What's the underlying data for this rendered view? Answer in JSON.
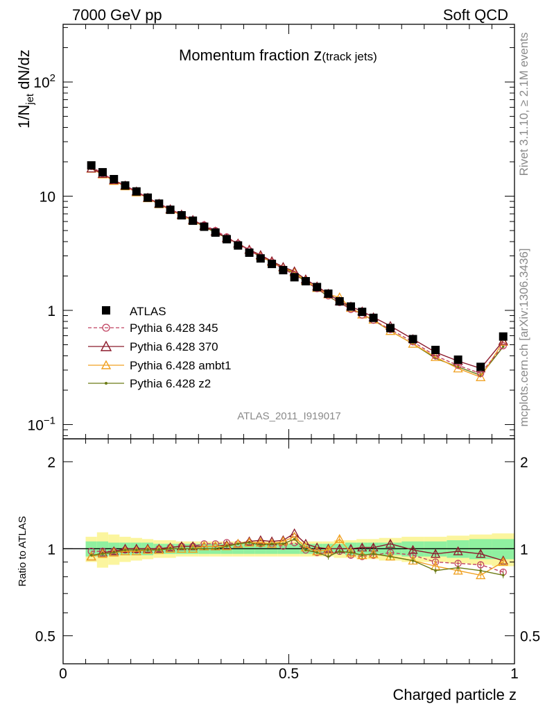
{
  "header": {
    "left": "7000 GeV pp",
    "right": "Soft QCD"
  },
  "side_labels": {
    "rivet": "Rivet 3.1.10, ≥ 2.1M events",
    "mcplots": "mcplots.cern.ch [arXiv:1306.3436]"
  },
  "chart_data": [
    {
      "type": "line",
      "title_main": "Momentum fraction ",
      "title_var": "z",
      "title_sub": "(track jets)",
      "ylabel": "1/N",
      "ylabel_sub": "jet",
      "ylabel_tail": " dN/dz",
      "watermark": "ATLAS_2011_I919017",
      "xlim": [
        0,
        1
      ],
      "ylim": [
        0.075,
        320
      ],
      "yscale": "log",
      "yticks": [
        {
          "value": 0.1,
          "base": "10",
          "exp": "−1"
        },
        {
          "value": 1,
          "base": "1",
          "exp": ""
        },
        {
          "value": 10,
          "base": "10",
          "exp": ""
        },
        {
          "value": 100,
          "base": "10",
          "exp": "2"
        }
      ],
      "legend_position": "bottom-left",
      "x": [
        0.0625,
        0.0875,
        0.1125,
        0.1375,
        0.1625,
        0.1875,
        0.2125,
        0.2375,
        0.2625,
        0.2875,
        0.3125,
        0.3375,
        0.3625,
        0.3875,
        0.4125,
        0.4375,
        0.4625,
        0.4875,
        0.5125,
        0.5375,
        0.5625,
        0.5875,
        0.6125,
        0.6375,
        0.6625,
        0.6875,
        0.725,
        0.775,
        0.825,
        0.875,
        0.925,
        0.975
      ],
      "series": [
        {
          "name": "ATLAS",
          "color": "#000000",
          "marker": "square",
          "values": [
            18.6,
            16.2,
            14.1,
            12.4,
            11.0,
            9.7,
            8.6,
            7.6,
            6.8,
            6.1,
            5.4,
            4.8,
            4.2,
            3.7,
            3.2,
            2.85,
            2.55,
            2.25,
            1.95,
            1.8,
            1.6,
            1.4,
            1.2,
            1.08,
            0.97,
            0.86,
            0.7,
            0.56,
            0.45,
            0.37,
            0.32,
            0.59
          ]
        },
        {
          "name": "Pythia 6.428 345",
          "color": "#c0405f",
          "marker": "circle-open",
          "dash": "5,3",
          "values": [
            18.2,
            15.8,
            13.8,
            12.3,
            10.9,
            9.6,
            8.6,
            7.7,
            6.9,
            6.2,
            5.6,
            5.0,
            4.4,
            3.85,
            3.35,
            2.95,
            2.65,
            2.3,
            2.05,
            1.78,
            1.55,
            1.34,
            1.17,
            1.02,
            0.91,
            0.82,
            0.68,
            0.53,
            0.4,
            0.33,
            0.28,
            0.49
          ]
        },
        {
          "name": "Pythia 6.428 370",
          "color": "#8b1a2b",
          "marker": "triangle-open",
          "values": [
            17.5,
            15.7,
            13.8,
            12.4,
            11.0,
            9.7,
            8.6,
            7.7,
            6.9,
            6.2,
            5.5,
            4.9,
            4.3,
            3.85,
            3.4,
            3.05,
            2.7,
            2.4,
            2.2,
            1.87,
            1.62,
            1.4,
            1.2,
            1.08,
            0.98,
            0.87,
            0.73,
            0.56,
            0.43,
            0.36,
            0.31,
            0.54
          ]
        },
        {
          "name": "Pythia 6.428 ambt1",
          "color": "#f0a020",
          "marker": "triangle-open",
          "values": [
            17.4,
            15.5,
            13.6,
            12.2,
            10.8,
            9.6,
            8.5,
            7.6,
            6.8,
            6.1,
            5.5,
            4.9,
            4.3,
            3.85,
            3.4,
            3.0,
            2.65,
            2.38,
            2.15,
            1.82,
            1.57,
            1.38,
            1.3,
            1.05,
            0.92,
            0.83,
            0.66,
            0.51,
            0.39,
            0.31,
            0.26,
            0.53
          ]
        },
        {
          "name": "Pythia 6.428 z2",
          "color": "#6b7a14",
          "marker": "dot",
          "values": [
            17.7,
            15.6,
            13.7,
            12.3,
            10.9,
            9.6,
            8.5,
            7.6,
            6.8,
            6.1,
            5.4,
            4.8,
            4.3,
            3.85,
            3.35,
            2.95,
            2.65,
            2.35,
            2.1,
            1.78,
            1.55,
            1.32,
            1.17,
            1.05,
            0.92,
            0.82,
            0.66,
            0.51,
            0.38,
            0.32,
            0.27,
            0.48
          ]
        }
      ]
    },
    {
      "type": "line",
      "ylabel": "Ratio to ATLAS",
      "xlabel": "Charged particle z",
      "xlim": [
        0,
        1
      ],
      "ylim": [
        0.4,
        2.4
      ],
      "yscale": "log",
      "xticks": [
        {
          "value": 0,
          "label": "0"
        },
        {
          "value": 0.5,
          "label": "0.5"
        },
        {
          "value": 1,
          "label": "1"
        }
      ],
      "yticks": [
        {
          "value": 0.5,
          "label": "0.5"
        },
        {
          "value": 1,
          "label": "1"
        },
        {
          "value": 2,
          "label": "2"
        }
      ],
      "band_inner": [
        0.06,
        0.06,
        0.05,
        0.05,
        0.05,
        0.05,
        0.04,
        0.04,
        0.04,
        0.04,
        0.04,
        0.04,
        0.04,
        0.04,
        0.04,
        0.04,
        0.04,
        0.04,
        0.04,
        0.04,
        0.04,
        0.04,
        0.04,
        0.05,
        0.05,
        0.05,
        0.05,
        0.06,
        0.06,
        0.07,
        0.08,
        0.08
      ],
      "band_outer": [
        0.1,
        0.14,
        0.12,
        0.1,
        0.09,
        0.08,
        0.07,
        0.07,
        0.06,
        0.06,
        0.06,
        0.06,
        0.06,
        0.06,
        0.06,
        0.06,
        0.06,
        0.06,
        0.06,
        0.06,
        0.06,
        0.06,
        0.07,
        0.07,
        0.08,
        0.08,
        0.09,
        0.1,
        0.1,
        0.11,
        0.12,
        0.13
      ],
      "series": [
        {
          "name": "Pythia 6.428 345",
          "values": [
            0.98,
            0.98,
            0.98,
            0.99,
            0.99,
            0.99,
            1.0,
            1.01,
            1.02,
            1.02,
            1.04,
            1.04,
            1.05,
            1.04,
            1.05,
            1.04,
            1.04,
            1.02,
            1.05,
            0.99,
            0.97,
            0.96,
            0.98,
            0.95,
            0.94,
            0.95,
            0.97,
            0.95,
            0.9,
            0.89,
            0.88,
            0.83
          ]
        },
        {
          "name": "Pythia 6.428 370",
          "values": [
            0.94,
            0.97,
            0.98,
            1.0,
            1.0,
            1.0,
            1.0,
            1.01,
            1.02,
            1.02,
            1.02,
            1.02,
            1.03,
            1.04,
            1.06,
            1.07,
            1.06,
            1.07,
            1.13,
            1.04,
            1.01,
            1.0,
            1.0,
            1.0,
            1.01,
            1.01,
            1.04,
            0.99,
            0.96,
            0.98,
            0.96,
            0.91
          ]
        },
        {
          "name": "Pythia 6.428 ambt1",
          "values": [
            0.94,
            0.96,
            0.97,
            0.98,
            0.98,
            0.99,
            0.99,
            1.0,
            1.0,
            1.0,
            1.02,
            1.02,
            1.02,
            1.04,
            1.05,
            1.05,
            1.04,
            1.06,
            1.1,
            1.01,
            0.98,
            0.99,
            1.08,
            0.97,
            0.95,
            0.96,
            0.94,
            0.91,
            0.87,
            0.84,
            0.81,
            0.9
          ]
        },
        {
          "name": "Pythia 6.428 z2",
          "values": [
            0.95,
            0.96,
            0.97,
            0.99,
            0.99,
            0.99,
            0.99,
            1.0,
            1.0,
            1.0,
            1.0,
            1.0,
            1.02,
            1.04,
            1.05,
            1.03,
            1.04,
            1.04,
            1.08,
            0.99,
            0.97,
            0.94,
            0.98,
            0.97,
            0.95,
            0.96,
            0.94,
            0.91,
            0.84,
            0.86,
            0.84,
            0.81
          ]
        }
      ]
    }
  ]
}
